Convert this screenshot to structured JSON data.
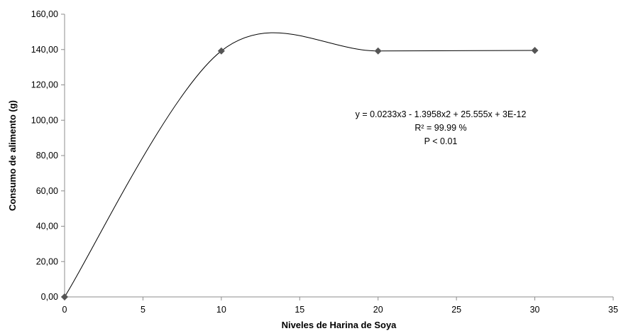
{
  "chart_data": {
    "type": "scatter",
    "xlabel": "Niveles de Harina de Soya",
    "ylabel": "Consumo de alimento (g)",
    "xlim": [
      0,
      35
    ],
    "ylim": [
      0,
      160
    ],
    "x_ticks": [
      "0",
      "5",
      "10",
      "15",
      "20",
      "25",
      "30",
      "35"
    ],
    "y_ticks": [
      "0,00",
      "20,00",
      "40,00",
      "60,00",
      "80,00",
      "100,00",
      "120,00",
      "140,00",
      "160,00"
    ],
    "grid": false,
    "series": [
      {
        "x": [
          0,
          10,
          20,
          30
        ],
        "y": [
          0,
          139.2,
          139.2,
          139.5
        ],
        "marker": "diamond",
        "color": "#555555"
      }
    ],
    "trendline": {
      "type": "polynomial",
      "coefficients": [
        0.0233,
        -1.3958,
        25.555,
        3e-12
      ],
      "color": "#000000"
    },
    "annotations": [
      "y = 0.0233x3 - 1.3958x2 + 25.555x + 3E-12",
      "R² = 99.99 %",
      "P < 0.01"
    ]
  }
}
